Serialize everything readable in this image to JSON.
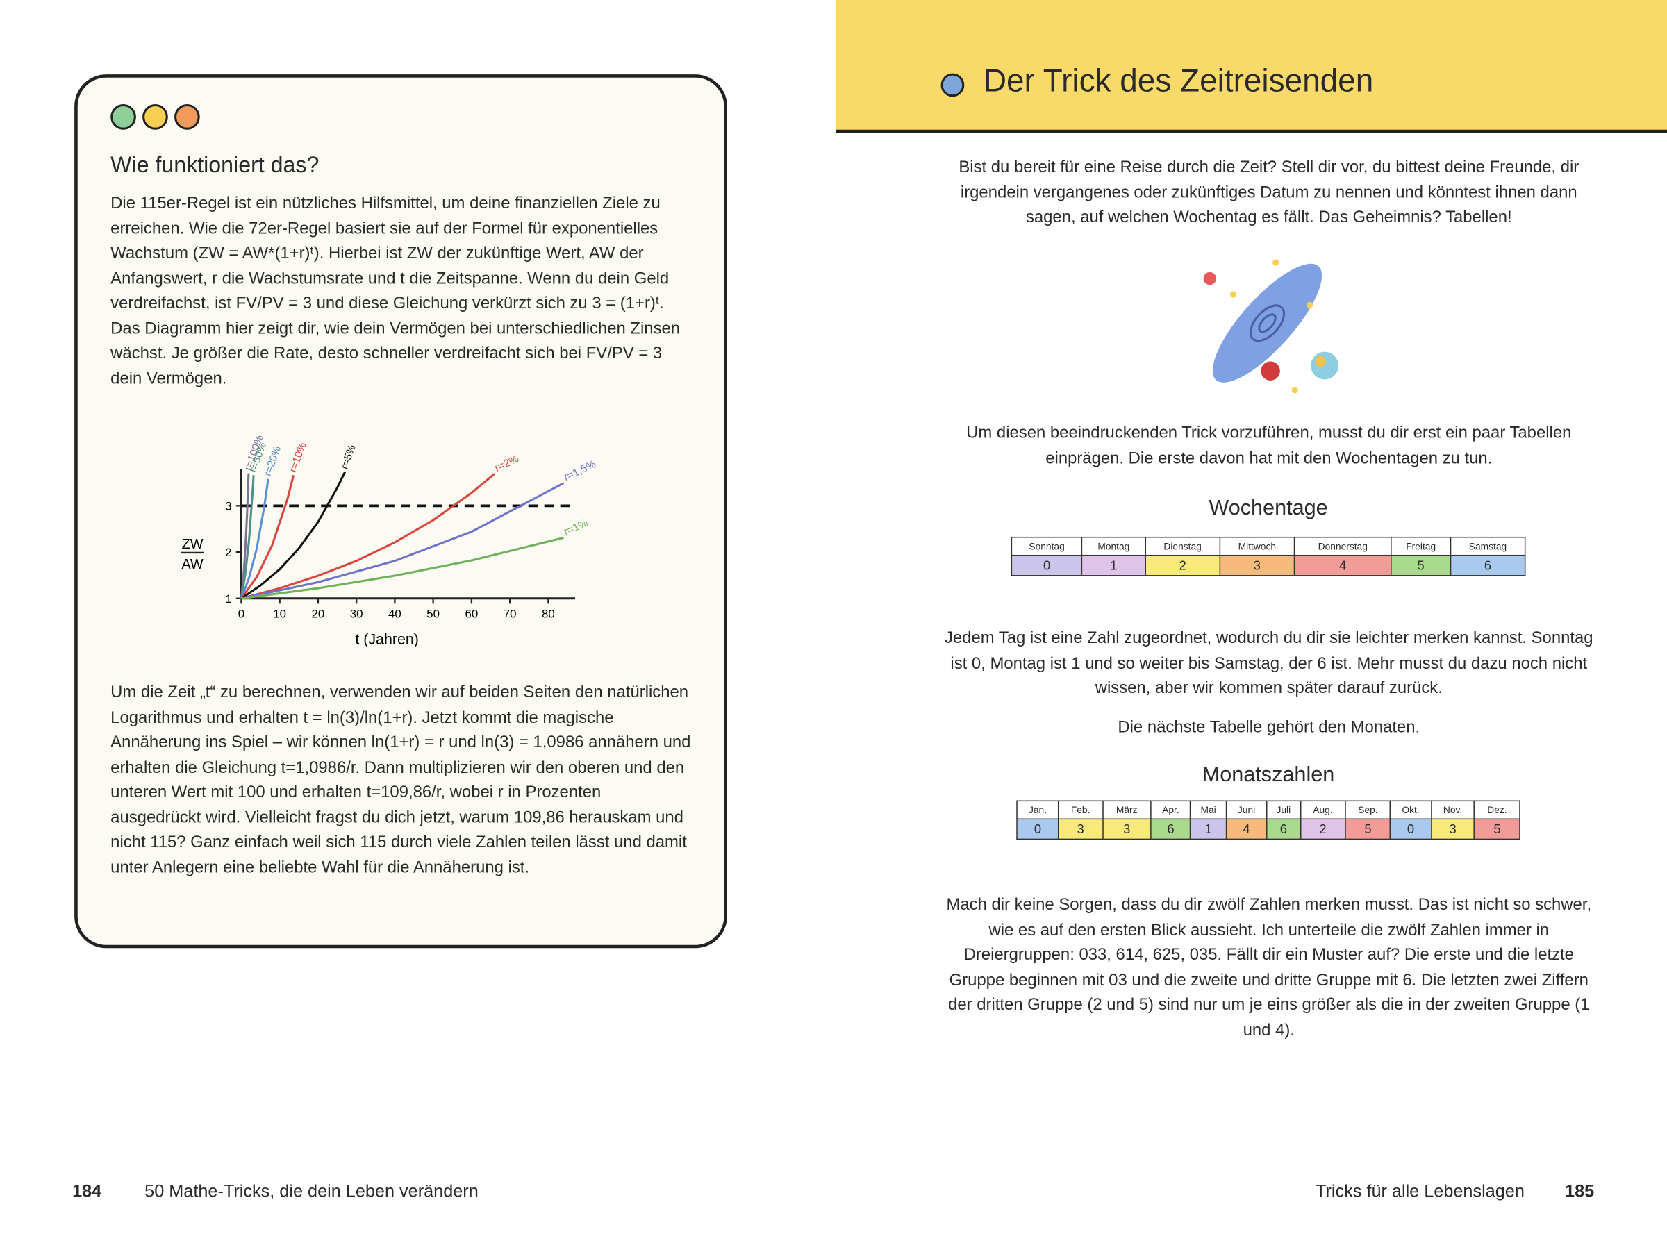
{
  "left_page": {
    "heading": "Wie funktioniert das?",
    "paragraph_1": "Die 115er-Regel ist ein nützliches Hilfsmittel, um deine finanziellen Ziele zu erreichen. Wie die 72er-Regel basiert sie auf der Formel für exponentielles Wachstum (ZW = AW*(1+r)ᵗ). Hierbei ist ZW der zukünftige Wert, AW der Anfangswert, r die Wachstumsrate und t die Zeitspanne. Wenn du dein Geld verdreifachst, ist FV/PV = 3 und diese Gleichung verkürzt sich zu 3 = (1+r)ᵗ. Das Diagramm hier zeigt dir, wie dein Vermögen bei unterschiedlichen Zinsen wächst. Je größer die Rate, desto schneller verdreifacht sich bei FV/PV = 3 dein Vermögen.",
    "paragraph_2": "Um die Zeit „t“ zu berechnen, verwenden wir auf beiden Seiten den natürlichen Logarithmus und erhalten t = ln(3)/ln(1+r). Jetzt kommt die magische Annäherung ins Spiel – wir können ln(1+r) = r und ln(3) = 1,0986 annähern und erhalten die Gleichung t=1,0986/r. Dann multiplizieren wir den oberen und den unteren Wert mit 100 und erhalten t=109,86/r, wobei r in Prozenten ausgedrückt wird. Vielleicht fragst du dich jetzt, warum 109,86 herauskam und nicht 115? Ganz einfach weil sich 115 durch viele Zahlen teilen lässt und damit unter Anlegern eine beliebte Wahl für die Annäherung ist.",
    "footer": {
      "page_number": "184",
      "book_title": "50 Mathe-Tricks, die dein Leben verändern"
    }
  },
  "chart_data": {
    "type": "line",
    "x_label": "t (Jahren)",
    "y_label": {
      "numerator": "ZW",
      "denominator": "AW"
    },
    "xlim": [
      0,
      87
    ],
    "ylim": [
      1,
      3.8
    ],
    "xticks": [
      0,
      10,
      20,
      30,
      40,
      50,
      60,
      70,
      80
    ],
    "yticks": [
      1,
      2,
      3
    ],
    "hline": 3,
    "series": [
      {
        "name": "r=100%",
        "color": "#7b7597",
        "x": [
          0,
          0.5,
          1,
          1.5,
          1.9
        ],
        "values": [
          1,
          1.41,
          2,
          2.83,
          3.7
        ]
      },
      {
        "name": "r=50%",
        "color": "#4e8f86",
        "x": [
          0,
          1,
          2,
          3,
          3.2
        ],
        "values": [
          1,
          1.5,
          2.25,
          3.38,
          3.66
        ]
      },
      {
        "name": "r=20%",
        "color": "#5a8fd6",
        "x": [
          0,
          2,
          4,
          6,
          7
        ],
        "values": [
          1,
          1.44,
          2.07,
          2.99,
          3.58
        ]
      },
      {
        "name": "r=10%",
        "color": "#d9463e",
        "x": [
          0,
          4,
          8,
          12,
          13.6
        ],
        "values": [
          1,
          1.46,
          2.14,
          3.14,
          3.66
        ]
      },
      {
        "name": "r=5%",
        "color": "#111111",
        "x": [
          0,
          5,
          10,
          15,
          20,
          25,
          27
        ],
        "values": [
          1,
          1.28,
          1.63,
          2.08,
          2.65,
          3.39,
          3.73
        ]
      },
      {
        "name": "r=2%",
        "color": "#d9463e",
        "x": [
          0,
          10,
          20,
          30,
          40,
          50,
          60,
          66
        ],
        "values": [
          1,
          1.22,
          1.49,
          1.81,
          2.21,
          2.69,
          3.28,
          3.69
        ]
      },
      {
        "name": "r=1,5%",
        "color": "#6f74c8",
        "x": [
          0,
          20,
          40,
          60,
          84
        ],
        "values": [
          1,
          1.35,
          1.81,
          2.44,
          3.49
        ]
      },
      {
        "name": "r=1%",
        "color": "#6fb15c",
        "x": [
          0,
          20,
          40,
          60,
          84
        ],
        "values": [
          1,
          1.22,
          1.49,
          1.82,
          2.31
        ]
      }
    ]
  },
  "right_page": {
    "title": "Der Trick des Zeitreisenden",
    "intro": "Bist du bereit für eine Reise durch die Zeit? Stell dir vor, du bittest deine Freunde, dir irgendein vergangenes oder zukünftiges Datum zu nennen und könntest ihnen dann sagen, auf welchen Wochentag es fällt. Das Geheimnis? Tabellen!",
    "paragraph_2": "Um diesen beeindruckenden Trick vorzuführen, musst du dir erst ein paar Tabellen einprägen. Die erste davon hat mit den Wochentagen zu tun.",
    "weekday_table": {
      "title": "Wochentage",
      "headers": [
        "Sonntag",
        "Montag",
        "Dienstag",
        "Mittwoch",
        "Donnerstag",
        "Freitag",
        "Samstag"
      ],
      "values": [
        0,
        1,
        2,
        3,
        4,
        5,
        6
      ],
      "cell_colors": [
        "#cbc5ec",
        "#e0c3e8",
        "#f8ea78",
        "#f6bb7c",
        "#f19c96",
        "#a9d98c",
        "#a9c9ef"
      ]
    },
    "paragraph_3": "Jedem Tag ist eine Zahl zugeordnet, wodurch du dir sie leichter merken kannst. Sonntag ist 0, Montag ist 1 und so weiter bis Samstag, der 6 ist. Mehr musst du dazu noch nicht wissen, aber wir kommen später darauf zurück.",
    "paragraph_4": "Die nächste Tabelle gehört den Monaten.",
    "month_table": {
      "title": "Monatszahlen",
      "headers": [
        "Jan.",
        "Feb.",
        "März",
        "Apr.",
        "Mai",
        "Juni",
        "Juli",
        "Aug.",
        "Sep.",
        "Okt.",
        "Nov.",
        "Dez."
      ],
      "values": [
        0,
        3,
        3,
        6,
        1,
        4,
        6,
        2,
        5,
        0,
        3,
        5
      ],
      "cell_colors": [
        "#a9c9ef",
        "#f8ea78",
        "#f8ea78",
        "#a9d98c",
        "#cbc5ec",
        "#f6bb7c",
        "#a9d98c",
        "#e0c3e8",
        "#f19c96",
        "#a9c9ef",
        "#f8ea78",
        "#f19c96"
      ]
    },
    "paragraph_5": "Mach dir keine Sorgen, dass du dir zwölf Zahlen merken musst. Das ist nicht so schwer, wie es auf den ersten Blick aussieht. Ich unterteile die zwölf Zahlen immer in Dreiergruppen: 033, 614, 625, 035. Fällt dir ein Muster auf? Die erste und die letzte Gruppe beginnen mit 03 und die zweite und dritte Gruppe mit 6. Die letzten zwei Ziffern der dritten Gruppe (2 und 5) sind nur um je eins größer als die in der zweiten Gruppe (1 und 4).",
    "footer": {
      "section": "Tricks für alle Lebenslagen",
      "page_number": "185"
    }
  }
}
